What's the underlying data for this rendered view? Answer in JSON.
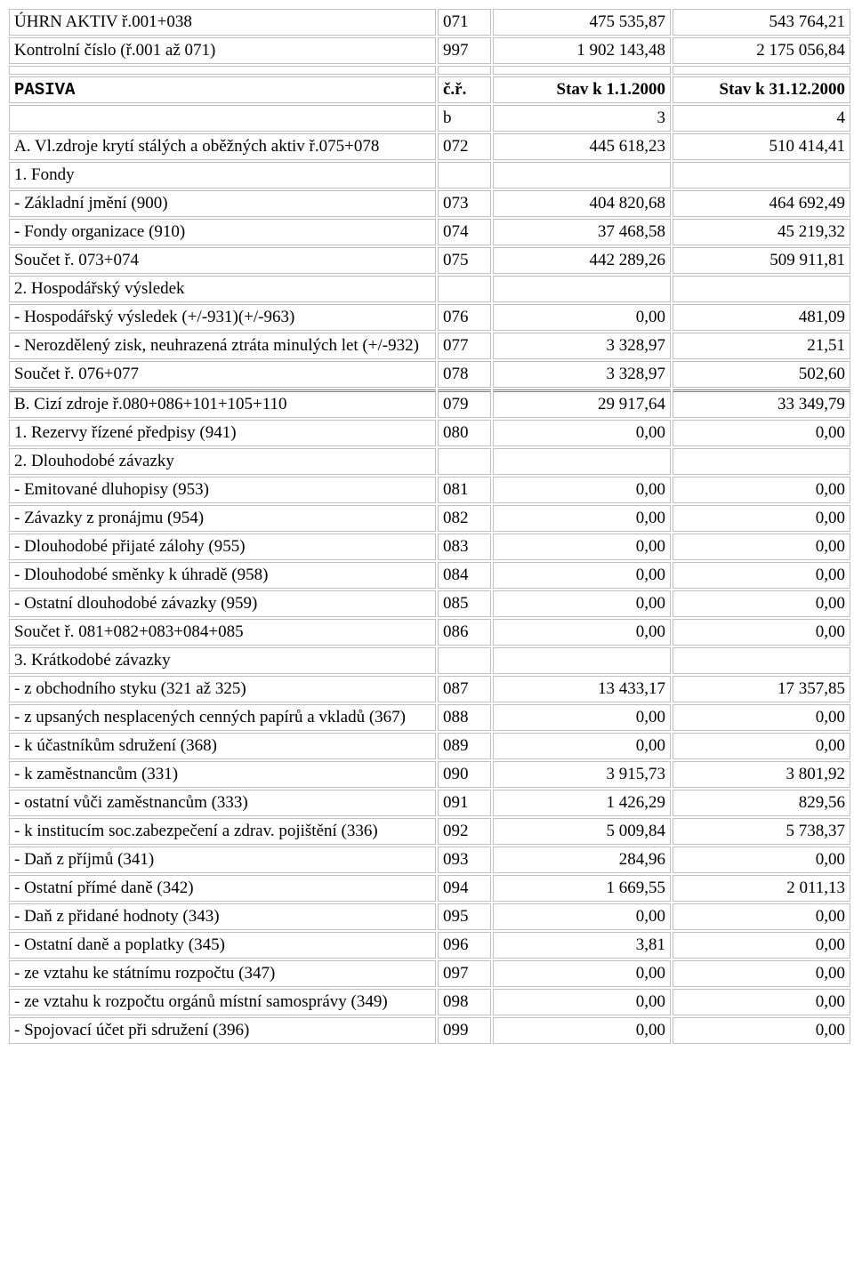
{
  "top_rows": [
    {
      "desc": "ÚHRN AKTIV ř.001+038",
      "code": "071",
      "v1": "475 535,87",
      "v2": "543 764,21"
    },
    {
      "desc": "Kontrolní číslo (ř.001 až 071)",
      "code": "997",
      "v1": "1 902 143,48",
      "v2": "2 175 056,84"
    }
  ],
  "pasiva_header": {
    "desc": "PASIVA",
    "code": "č.ř.",
    "v1": "Stav k 1.1.2000",
    "v2": "Stav k 31.12.2000"
  },
  "subheader": {
    "desc": "",
    "code": "b",
    "v1": "3",
    "v2": "4"
  },
  "rows": [
    {
      "desc": "A. Vl.zdroje krytí stálých a oběžných aktiv ř.075+078",
      "code": "072",
      "v1": "445 618,23",
      "v2": "510 414,41"
    },
    {
      "desc": "1. Fondy",
      "code": "",
      "v1": "",
      "v2": ""
    },
    {
      "desc": "- Základní jmění (900)",
      "code": "073",
      "v1": "404 820,68",
      "v2": "464 692,49"
    },
    {
      "desc": "- Fondy organizace (910)",
      "code": "074",
      "v1": "37 468,58",
      "v2": "45 219,32"
    },
    {
      "desc": "Součet ř. 073+074",
      "code": "075",
      "v1": "442 289,26",
      "v2": "509 911,81"
    },
    {
      "desc": "2. Hospodářský výsledek",
      "code": "",
      "v1": "",
      "v2": ""
    },
    {
      "desc": "- Hospodářský výsledek (+/-931)(+/-963)",
      "code": "076",
      "v1": "0,00",
      "v2": "481,09"
    },
    {
      "desc": "- Nerozdělený zisk, neuhrazená ztráta minulých let (+/-932)",
      "code": "077",
      "v1": "3 328,97",
      "v2": "21,51"
    },
    {
      "desc": "Součet ř. 076+077",
      "code": "078",
      "v1": "3 328,97",
      "v2": "502,60"
    },
    {
      "desc": "B. Cizí zdroje ř.080+086+101+105+110",
      "code": "079",
      "v1": "29 917,64",
      "v2": "33 349,79",
      "double": true
    },
    {
      "desc": "1. Rezervy řízené předpisy (941)",
      "code": "080",
      "v1": "0,00",
      "v2": "0,00"
    },
    {
      "desc": "2. Dlouhodobé závazky",
      "code": "",
      "v1": "",
      "v2": ""
    },
    {
      "desc": "- Emitované dluhopisy (953)",
      "code": "081",
      "v1": "0,00",
      "v2": "0,00"
    },
    {
      "desc": "- Závazky z pronájmu (954)",
      "code": "082",
      "v1": "0,00",
      "v2": "0,00"
    },
    {
      "desc": "- Dlouhodobé přijaté zálohy (955)",
      "code": "083",
      "v1": "0,00",
      "v2": "0,00"
    },
    {
      "desc": "- Dlouhodobé směnky k úhradě (958)",
      "code": "084",
      "v1": "0,00",
      "v2": "0,00"
    },
    {
      "desc": "- Ostatní dlouhodobé závazky (959)",
      "code": "085",
      "v1": "0,00",
      "v2": "0,00"
    },
    {
      "desc": "Součet ř. 081+082+083+084+085",
      "code": "086",
      "v1": "0,00",
      "v2": "0,00"
    },
    {
      "desc": "3. Krátkodobé závazky",
      "code": "",
      "v1": "",
      "v2": ""
    },
    {
      "desc": "- z obchodního styku (321 až 325)",
      "code": "087",
      "v1": "13 433,17",
      "v2": "17 357,85"
    },
    {
      "desc": "- z upsaných nesplacených cenných papírů a vkladů (367)",
      "code": "088",
      "v1": "0,00",
      "v2": "0,00"
    },
    {
      "desc": "- k účastníkům sdružení (368)",
      "code": "089",
      "v1": "0,00",
      "v2": "0,00"
    },
    {
      "desc": "- k zaměstnancům (331)",
      "code": "090",
      "v1": "3 915,73",
      "v2": "3 801,92"
    },
    {
      "desc": "- ostatní vůči zaměstnancům (333)",
      "code": "091",
      "v1": "1 426,29",
      "v2": "829,56"
    },
    {
      "desc": "- k institucím soc.zabezpečení a zdrav. pojištění (336)",
      "code": "092",
      "v1": "5 009,84",
      "v2": "5 738,37"
    },
    {
      "desc": "- Daň z příjmů (341)",
      "code": "093",
      "v1": "284,96",
      "v2": "0,00"
    },
    {
      "desc": "- Ostatní přímé daně (342)",
      "code": "094",
      "v1": "1 669,55",
      "v2": "2 011,13"
    },
    {
      "desc": "- Daň z přidané hodnoty (343)",
      "code": "095",
      "v1": "0,00",
      "v2": "0,00"
    },
    {
      "desc": "- Ostatní daně a poplatky (345)",
      "code": "096",
      "v1": "3,81",
      "v2": "0,00"
    },
    {
      "desc": "- ze vztahu ke státnímu rozpočtu (347)",
      "code": "097",
      "v1": "0,00",
      "v2": "0,00"
    },
    {
      "desc": "- ze vztahu k rozpočtu orgánů místní samosprávy (349)",
      "code": "098",
      "v1": "0,00",
      "v2": "0,00"
    },
    {
      "desc": "- Spojovací účet při sdružení (396)",
      "code": "099",
      "v1": "0,00",
      "v2": "0,00"
    }
  ]
}
